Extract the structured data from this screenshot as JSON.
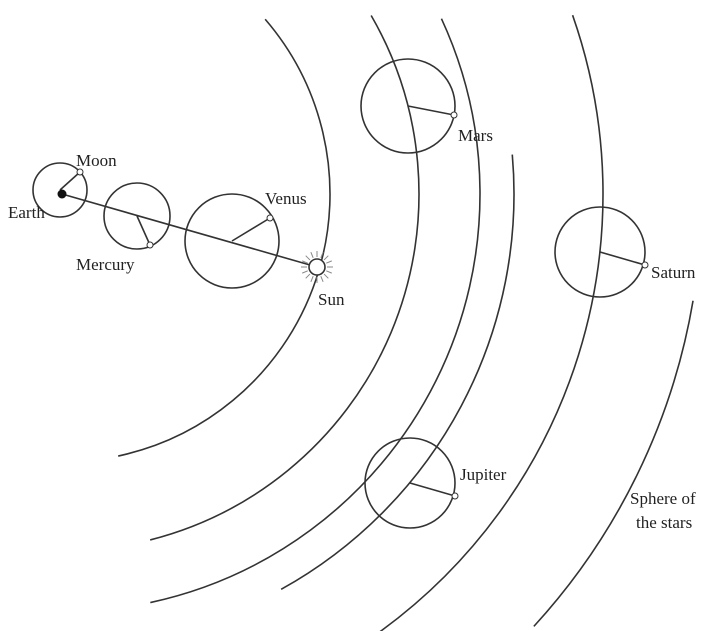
{
  "nodes": [
    {
      "label": "Moon"
    },
    {
      "label": "Earth"
    },
    {
      "label": "Mercury"
    },
    {
      "label": "Venus"
    },
    {
      "label": "Sun"
    },
    {
      "label": "Mars"
    },
    {
      "label": "Saturn"
    },
    {
      "label": "Jupiter"
    },
    {
      "lines": [
        "Sphere of",
        "the stars"
      ]
    }
  ]
}
